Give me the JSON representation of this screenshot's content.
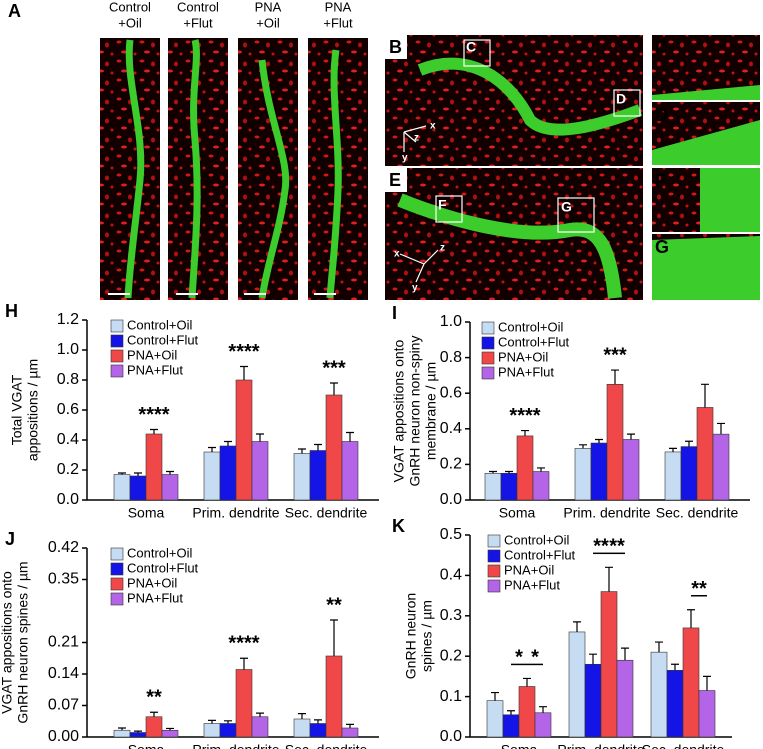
{
  "image_panels": {
    "letters": [
      "A",
      "B",
      "C",
      "D",
      "E",
      "F",
      "G"
    ],
    "columns": [
      [
        "Control",
        "+Oil"
      ],
      [
        "Control",
        "+Flut"
      ],
      [
        "PNA",
        "+Oil"
      ],
      [
        "PNA",
        "+Flut"
      ]
    ],
    "axes_b": [
      "z",
      "x",
      "y"
    ],
    "axes_e": [
      "x",
      "z",
      "y"
    ]
  },
  "chart_data": [
    {
      "type": "bar",
      "panel": "H",
      "ylabel": [
        "Total VGAT",
        "appositions / µm"
      ],
      "categories": [
        "Soma",
        "Prim. dendrite",
        "Sec. dendrite"
      ],
      "series": [
        {
          "name": "Control+Oil",
          "color": "#c6dcf2",
          "values": [
            0.17,
            0.32,
            0.31
          ],
          "errors": [
            0.01,
            0.03,
            0.03
          ]
        },
        {
          "name": "Control+Flut",
          "color": "#1414e6",
          "values": [
            0.16,
            0.36,
            0.33
          ],
          "errors": [
            0.02,
            0.03,
            0.04
          ]
        },
        {
          "name": "PNA+Oil",
          "color": "#f04848",
          "values": [
            0.44,
            0.8,
            0.7
          ],
          "errors": [
            0.03,
            0.09,
            0.08
          ]
        },
        {
          "name": "PNA+Flut",
          "color": "#b464e6",
          "values": [
            0.17,
            0.39,
            0.39
          ],
          "errors": [
            0.02,
            0.05,
            0.06
          ]
        }
      ],
      "ylim": [
        0,
        1.2
      ],
      "yticks": [
        {
          "value": 0,
          "label": "0.0"
        },
        0.2,
        0.4,
        0.6,
        0.8,
        {
          "value": 1,
          "label": "1.0"
        },
        1.2
      ],
      "annotations": [
        {
          "text": "****",
          "category": "Soma",
          "series": [
            "PNA+Oil"
          ]
        },
        {
          "text": "****",
          "category": "Prim. dendrite",
          "series": [
            "PNA+Oil"
          ]
        },
        {
          "text": "***",
          "category": "Sec. dendrite",
          "series": [
            "PNA+Oil"
          ]
        }
      ]
    },
    {
      "type": "bar",
      "panel": "I",
      "ylabel": [
        "VGAT appositions onto",
        "GnRH neuron non-spiny",
        "membrane / µm"
      ],
      "categories": [
        "Soma",
        "Prim. dendrite",
        "Sec. dendrite"
      ],
      "series": [
        {
          "name": "Control+Oil",
          "color": "#c6dcf2",
          "values": [
            0.15,
            0.29,
            0.27
          ],
          "errors": [
            0.01,
            0.02,
            0.02
          ]
        },
        {
          "name": "Control+Flut",
          "color": "#1414e6",
          "values": [
            0.15,
            0.32,
            0.3
          ],
          "errors": [
            0.01,
            0.02,
            0.03
          ]
        },
        {
          "name": "PNA+Oil",
          "color": "#f04848",
          "values": [
            0.36,
            0.65,
            0.52
          ],
          "errors": [
            0.03,
            0.08,
            0.13
          ]
        },
        {
          "name": "PNA+Flut",
          "color": "#b464e6",
          "values": [
            0.16,
            0.34,
            0.37
          ],
          "errors": [
            0.02,
            0.03,
            0.06
          ]
        }
      ],
      "ylim": [
        0,
        1
      ],
      "yticks": [
        {
          "value": 0,
          "label": "0.0"
        },
        0.2,
        0.4,
        0.6,
        0.8,
        {
          "value": 1,
          "label": "1.0"
        }
      ],
      "annotations": [
        {
          "text": "****",
          "category": "Soma",
          "series": [
            "PNA+Oil"
          ]
        },
        {
          "text": "***",
          "category": "Prim. dendrite",
          "series": [
            "PNA+Oil"
          ]
        }
      ]
    },
    {
      "type": "bar",
      "panel": "J",
      "ylabel": [
        "VGAT appositions onto",
        "GnRH neuron spines / µm"
      ],
      "categories": [
        "Soma",
        "Prim. dendrite",
        "Sec. dendrite"
      ],
      "series": [
        {
          "name": "Control+Oil",
          "color": "#c6dcf2",
          "values": [
            0.015,
            0.03,
            0.04
          ],
          "errors": [
            0.005,
            0.007,
            0.012
          ]
        },
        {
          "name": "Control+Flut",
          "color": "#1414e6",
          "values": [
            0.01,
            0.03,
            0.03
          ],
          "errors": [
            0.003,
            0.006,
            0.008
          ]
        },
        {
          "name": "PNA+Oil",
          "color": "#f04848",
          "values": [
            0.045,
            0.15,
            0.18
          ],
          "errors": [
            0.01,
            0.025,
            0.08
          ]
        },
        {
          "name": "PNA+Flut",
          "color": "#b464e6",
          "values": [
            0.015,
            0.045,
            0.02
          ],
          "errors": [
            0.004,
            0.008,
            0.008
          ]
        }
      ],
      "ylim": [
        0,
        0.42
      ],
      "yticks": [
        {
          "value": 0,
          "label": "0.00"
        },
        0.07,
        0.14,
        0.21,
        0.35,
        0.42
      ],
      "annotations": [
        {
          "text": "**",
          "category": "Soma",
          "series": [
            "PNA+Oil"
          ]
        },
        {
          "text": "****",
          "category": "Prim. dendrite",
          "series": [
            "PNA+Oil"
          ]
        },
        {
          "text": "**",
          "category": "Sec. dendrite",
          "series": [
            "PNA+Oil"
          ]
        }
      ]
    },
    {
      "type": "bar",
      "panel": "K",
      "ylabel": [
        "GnRH neuron",
        "spines / µm"
      ],
      "categories": [
        "Soma",
        "Prim. dendrite",
        "Sec. dendrite"
      ],
      "series": [
        {
          "name": "Control+Oil",
          "color": "#c6dcf2",
          "values": [
            0.09,
            0.26,
            0.21
          ],
          "errors": [
            0.02,
            0.025,
            0.025
          ]
        },
        {
          "name": "Control+Flut",
          "color": "#1414e6",
          "values": [
            0.055,
            0.18,
            0.165
          ],
          "errors": [
            0.01,
            0.025,
            0.015
          ]
        },
        {
          "name": "PNA+Oil",
          "color": "#f04848",
          "values": [
            0.125,
            0.36,
            0.27
          ],
          "errors": [
            0.02,
            0.06,
            0.045
          ]
        },
        {
          "name": "PNA+Flut",
          "color": "#b464e6",
          "values": [
            0.06,
            0.19,
            0.115
          ],
          "errors": [
            0.015,
            0.03,
            0.035
          ]
        }
      ],
      "ylim": [
        0,
        0.5
      ],
      "yticks": [
        {
          "value": 0,
          "label": "0.0"
        },
        0.1,
        0.2,
        0.3,
        0.4,
        0.5
      ],
      "annotations": [
        {
          "text": "*",
          "category": "Soma",
          "series": [
            "Control+Flut",
            "PNA+Oil"
          ]
        },
        {
          "text": "*",
          "category": "Soma",
          "series": [
            "PNA+Oil",
            "PNA+Flut"
          ]
        },
        {
          "text": "**",
          "category": "Prim. dendrite",
          "series": [
            "Control+Flut",
            "PNA+Oil"
          ]
        },
        {
          "text": "**",
          "category": "Prim. dendrite",
          "series": [
            "PNA+Oil",
            "PNA+Flut"
          ]
        },
        {
          "text": "**",
          "category": "Sec. dendrite",
          "series": [
            "PNA+Oil",
            "PNA+Flut"
          ]
        }
      ]
    }
  ]
}
